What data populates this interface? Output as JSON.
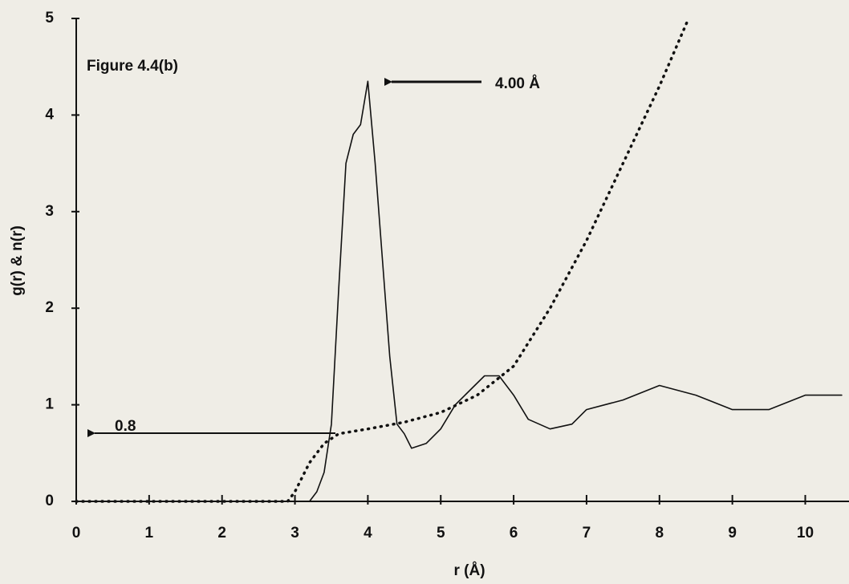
{
  "chart_data": {
    "type": "line",
    "annotations": [
      "Figure 4.4(b)",
      "4.00 Å",
      "0.8"
    ],
    "x_label": "r (Å)",
    "y_label": "g(r) & n(r)",
    "xlim": [
      0,
      10.6
    ],
    "ylim": [
      0,
      5
    ],
    "xticks": [
      0,
      1,
      2,
      3,
      4,
      5,
      6,
      7,
      8,
      9,
      10
    ],
    "yticks": [
      0,
      1,
      2,
      3,
      4,
      5
    ],
    "series": [
      {
        "color": "#111111",
        "dash": "solid",
        "x": [
          0,
          3.2,
          3.3,
          3.4,
          3.5,
          3.6,
          3.7,
          3.8,
          3.9,
          4.0,
          4.1,
          4.2,
          4.3,
          4.4,
          4.5,
          4.6,
          4.8,
          5.0,
          5.2,
          5.4,
          5.6,
          5.8,
          6.0,
          6.2,
          6.5,
          6.8,
          7.0,
          7.5,
          8.0,
          8.5,
          9.0,
          9.5,
          10.0,
          10.5
        ],
        "values": [
          0,
          0,
          0.1,
          0.3,
          0.8,
          2.2,
          3.5,
          3.8,
          3.9,
          4.35,
          3.5,
          2.5,
          1.5,
          0.8,
          0.7,
          0.55,
          0.6,
          0.75,
          1.0,
          1.15,
          1.3,
          1.3,
          1.1,
          0.85,
          0.75,
          0.8,
          0.95,
          1.05,
          1.2,
          1.1,
          0.95,
          0.95,
          1.1,
          1.1
        ]
      },
      {
        "color": "#111111",
        "dash": "dotted",
        "x": [
          0,
          2.9,
          3.0,
          3.2,
          3.4,
          3.6,
          4.0,
          4.5,
          5.0,
          5.5,
          6.0,
          6.5,
          7.0,
          7.5,
          8.0,
          8.4
        ],
        "values": [
          0,
          0,
          0.1,
          0.4,
          0.6,
          0.7,
          0.75,
          0.82,
          0.92,
          1.1,
          1.4,
          2.0,
          2.7,
          3.5,
          4.3,
          5.0
        ]
      }
    ]
  }
}
